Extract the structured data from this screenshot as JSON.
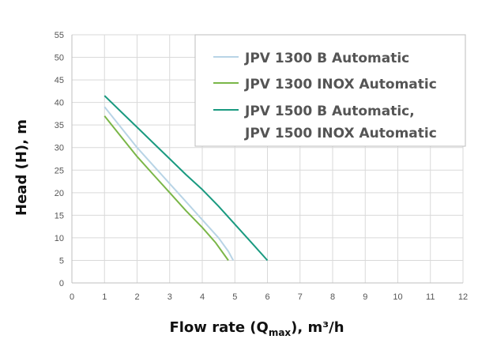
{
  "chart_data": {
    "type": "line",
    "title": "",
    "xlabel": {
      "prefix": "Flow rate (Q",
      "sub": "max",
      "suffix": "), m³/h"
    },
    "ylabel": "Head (H), m",
    "xlim": [
      0,
      12
    ],
    "ylim": [
      0,
      55
    ],
    "xticks": [
      0,
      1,
      2,
      3,
      4,
      5,
      6,
      7,
      8,
      9,
      10,
      11,
      12
    ],
    "yticks": [
      0,
      5,
      10,
      15,
      20,
      25,
      30,
      35,
      40,
      45,
      50,
      55
    ],
    "grid": true,
    "legend_position": "top-right",
    "series": [
      {
        "name": "JPV 1300 B Automatic",
        "color": "#b8d4e6",
        "x": [
          1,
          1.5,
          2,
          2.5,
          3,
          3.5,
          4,
          4.5,
          4.8,
          4.95
        ],
        "y": [
          39,
          34.5,
          30,
          26,
          22,
          18,
          14,
          10,
          7,
          5
        ]
      },
      {
        "name": "JPV 1300 INOX Automatic",
        "color": "#7ab648",
        "x": [
          1,
          1.5,
          2,
          2.5,
          3,
          3.5,
          4,
          4.4,
          4.8
        ],
        "y": [
          37,
          32.5,
          28,
          24,
          20,
          16,
          12.3,
          9,
          5
        ]
      },
      {
        "name": "JPV 1500 B Automatic,",
        "name_line2": "JPV 1500 INOX Automatic",
        "color": "#1a9a80",
        "x": [
          1,
          1.5,
          2,
          2.5,
          3,
          3.5,
          4,
          4.5,
          5,
          5.5,
          6
        ],
        "y": [
          41.5,
          38,
          34.5,
          31,
          27.5,
          24,
          20.7,
          17,
          13,
          9,
          5
        ]
      }
    ]
  }
}
